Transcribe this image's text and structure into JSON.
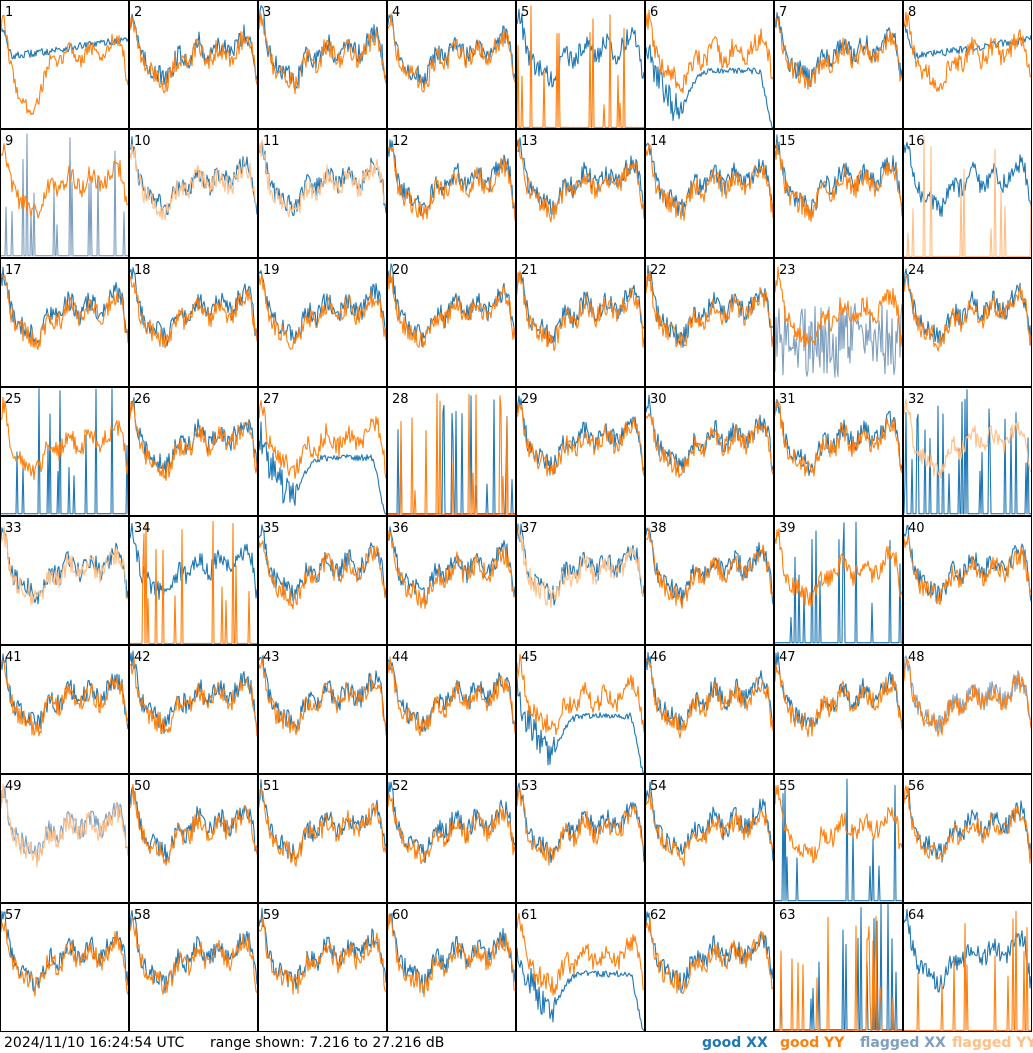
{
  "chart_data": {
    "type": "line",
    "grid": {
      "rows": 8,
      "cols": 8
    },
    "ylim": [
      7.216,
      27.216
    ],
    "legend": [
      {
        "key": "good_xx",
        "label": "good XX",
        "color": "#1f77b4"
      },
      {
        "key": "good_yy",
        "label": "good YY",
        "color": "#ff7f0e"
      },
      {
        "key": "flagged_xx",
        "label": "flagged XX",
        "color": "#7f9fbf"
      },
      {
        "key": "flagged_yy",
        "label": "flagged YY",
        "color": "#ffbf87"
      }
    ],
    "panels": [
      {
        "id": "1",
        "xx": "good",
        "yy": "good",
        "xx_shape": "flat",
        "yy_shape": "dip"
      },
      {
        "id": "2",
        "xx": "good",
        "yy": "good",
        "xx_shape": "normal",
        "yy_shape": "normal"
      },
      {
        "id": "3",
        "xx": "good",
        "yy": "good",
        "xx_shape": "normal",
        "yy_shape": "normal"
      },
      {
        "id": "4",
        "xx": "good",
        "yy": "good",
        "xx_shape": "normal",
        "yy_shape": "normal"
      },
      {
        "id": "5",
        "xx": "good",
        "yy": "good",
        "xx_shape": "normal",
        "yy_shape": "spiky"
      },
      {
        "id": "6",
        "xx": "good",
        "yy": "good",
        "xx_shape": "bowl",
        "yy_shape": "normal"
      },
      {
        "id": "7",
        "xx": "good",
        "yy": "good",
        "xx_shape": "normal",
        "yy_shape": "normal"
      },
      {
        "id": "8",
        "xx": "good",
        "yy": "good",
        "xx_shape": "flat",
        "yy_shape": "normal"
      },
      {
        "id": "9",
        "xx": "flagged",
        "yy": "good",
        "xx_shape": "spiky",
        "yy_shape": "normal"
      },
      {
        "id": "10",
        "xx": "good",
        "yy": "flagged",
        "xx_shape": "normal",
        "yy_shape": "normal"
      },
      {
        "id": "11",
        "xx": "good",
        "yy": "flagged",
        "xx_shape": "normal",
        "yy_shape": "normal"
      },
      {
        "id": "12",
        "xx": "good",
        "yy": "good",
        "xx_shape": "normal",
        "yy_shape": "normal"
      },
      {
        "id": "13",
        "xx": "good",
        "yy": "good",
        "xx_shape": "normal",
        "yy_shape": "normal"
      },
      {
        "id": "14",
        "xx": "good",
        "yy": "good",
        "xx_shape": "normal",
        "yy_shape": "normal"
      },
      {
        "id": "15",
        "xx": "good",
        "yy": "good",
        "xx_shape": "normal",
        "yy_shape": "normal"
      },
      {
        "id": "16",
        "xx": "good",
        "yy": "flagged",
        "xx_shape": "normal",
        "yy_shape": "spiky"
      },
      {
        "id": "17",
        "xx": "good",
        "yy": "good",
        "xx_shape": "normal",
        "yy_shape": "normal"
      },
      {
        "id": "18",
        "xx": "good",
        "yy": "good",
        "xx_shape": "normal",
        "yy_shape": "normal"
      },
      {
        "id": "19",
        "xx": "good",
        "yy": "good",
        "xx_shape": "normal",
        "yy_shape": "normal"
      },
      {
        "id": "20",
        "xx": "good",
        "yy": "good",
        "xx_shape": "normal",
        "yy_shape": "normal"
      },
      {
        "id": "21",
        "xx": "good",
        "yy": "good",
        "xx_shape": "normal",
        "yy_shape": "normal"
      },
      {
        "id": "22",
        "xx": "good",
        "yy": "good",
        "xx_shape": "normal",
        "yy_shape": "normal"
      },
      {
        "id": "23",
        "xx": "flagged",
        "yy": "good",
        "xx_shape": "noisy",
        "yy_shape": "normal"
      },
      {
        "id": "24",
        "xx": "good",
        "yy": "good",
        "xx_shape": "normal",
        "yy_shape": "normal"
      },
      {
        "id": "25",
        "xx": "good",
        "yy": "good",
        "xx_shape": "spiky",
        "yy_shape": "normal"
      },
      {
        "id": "26",
        "xx": "good",
        "yy": "good",
        "xx_shape": "normal",
        "yy_shape": "normal"
      },
      {
        "id": "27",
        "xx": "good",
        "yy": "good",
        "xx_shape": "bowl",
        "yy_shape": "normal"
      },
      {
        "id": "28",
        "xx": "good",
        "yy": "good",
        "xx_shape": "spiky",
        "yy_shape": "spiky"
      },
      {
        "id": "29",
        "xx": "good",
        "yy": "good",
        "xx_shape": "normal",
        "yy_shape": "normal"
      },
      {
        "id": "30",
        "xx": "good",
        "yy": "good",
        "xx_shape": "normal",
        "yy_shape": "normal"
      },
      {
        "id": "31",
        "xx": "good",
        "yy": "good",
        "xx_shape": "normal",
        "yy_shape": "normal"
      },
      {
        "id": "32",
        "xx": "good",
        "yy": "flagged",
        "xx_shape": "spiky",
        "yy_shape": "normal"
      },
      {
        "id": "33",
        "xx": "good",
        "yy": "flagged",
        "xx_shape": "normal",
        "yy_shape": "normal"
      },
      {
        "id": "34",
        "xx": "good",
        "yy": "good",
        "xx_shape": "normal",
        "yy_shape": "spiky"
      },
      {
        "id": "35",
        "xx": "good",
        "yy": "good",
        "xx_shape": "normal",
        "yy_shape": "normal"
      },
      {
        "id": "36",
        "xx": "good",
        "yy": "good",
        "xx_shape": "normal",
        "yy_shape": "normal"
      },
      {
        "id": "37",
        "xx": "good",
        "yy": "flagged",
        "xx_shape": "normal",
        "yy_shape": "normal"
      },
      {
        "id": "38",
        "xx": "good",
        "yy": "good",
        "xx_shape": "normal",
        "yy_shape": "normal"
      },
      {
        "id": "39",
        "xx": "good",
        "yy": "good",
        "xx_shape": "spiky",
        "yy_shape": "normal"
      },
      {
        "id": "40",
        "xx": "good",
        "yy": "good",
        "xx_shape": "normal",
        "yy_shape": "normal"
      },
      {
        "id": "41",
        "xx": "good",
        "yy": "good",
        "xx_shape": "normal",
        "yy_shape": "normal"
      },
      {
        "id": "42",
        "xx": "good",
        "yy": "good",
        "xx_shape": "normal",
        "yy_shape": "normal"
      },
      {
        "id": "43",
        "xx": "good",
        "yy": "good",
        "xx_shape": "normal",
        "yy_shape": "normal"
      },
      {
        "id": "44",
        "xx": "good",
        "yy": "good",
        "xx_shape": "normal",
        "yy_shape": "normal"
      },
      {
        "id": "45",
        "xx": "good",
        "yy": "good",
        "xx_shape": "bowl",
        "yy_shape": "normal"
      },
      {
        "id": "46",
        "xx": "good",
        "yy": "good",
        "xx_shape": "normal",
        "yy_shape": "normal"
      },
      {
        "id": "47",
        "xx": "good",
        "yy": "good",
        "xx_shape": "normal",
        "yy_shape": "normal"
      },
      {
        "id": "48",
        "xx": "flagged",
        "yy": "good",
        "xx_shape": "normal",
        "yy_shape": "normal"
      },
      {
        "id": "49",
        "xx": "flagged",
        "yy": "flagged",
        "xx_shape": "normal",
        "yy_shape": "normal"
      },
      {
        "id": "50",
        "xx": "good",
        "yy": "good",
        "xx_shape": "normal",
        "yy_shape": "normal"
      },
      {
        "id": "51",
        "xx": "good",
        "yy": "good",
        "xx_shape": "normal",
        "yy_shape": "normal"
      },
      {
        "id": "52",
        "xx": "good",
        "yy": "good",
        "xx_shape": "normal",
        "yy_shape": "normal"
      },
      {
        "id": "53",
        "xx": "good",
        "yy": "good",
        "xx_shape": "normal",
        "yy_shape": "normal"
      },
      {
        "id": "54",
        "xx": "good",
        "yy": "good",
        "xx_shape": "normal",
        "yy_shape": "normal"
      },
      {
        "id": "55",
        "xx": "good",
        "yy": "good",
        "xx_shape": "spiky",
        "yy_shape": "normal"
      },
      {
        "id": "56",
        "xx": "good",
        "yy": "good",
        "xx_shape": "normal",
        "yy_shape": "normal"
      },
      {
        "id": "57",
        "xx": "good",
        "yy": "good",
        "xx_shape": "normal",
        "yy_shape": "normal"
      },
      {
        "id": "58",
        "xx": "good",
        "yy": "good",
        "xx_shape": "normal",
        "yy_shape": "normal"
      },
      {
        "id": "59",
        "xx": "good",
        "yy": "good",
        "xx_shape": "normal",
        "yy_shape": "normal"
      },
      {
        "id": "60",
        "xx": "good",
        "yy": "good",
        "xx_shape": "normal",
        "yy_shape": "normal"
      },
      {
        "id": "61",
        "xx": "good",
        "yy": "good",
        "xx_shape": "bowl",
        "yy_shape": "normal"
      },
      {
        "id": "62",
        "xx": "good",
        "yy": "good",
        "xx_shape": "normal",
        "yy_shape": "normal"
      },
      {
        "id": "63",
        "xx": "good",
        "yy": "good",
        "xx_shape": "spiky",
        "yy_shape": "spiky"
      },
      {
        "id": "64",
        "xx": "good",
        "yy": "good",
        "xx_shape": "normal",
        "yy_shape": "spiky"
      }
    ]
  },
  "footer": {
    "timestamp": "2024/11/10 16:24:54 UTC",
    "range_text": "range shown: 7.216 to 27.216 dB"
  }
}
